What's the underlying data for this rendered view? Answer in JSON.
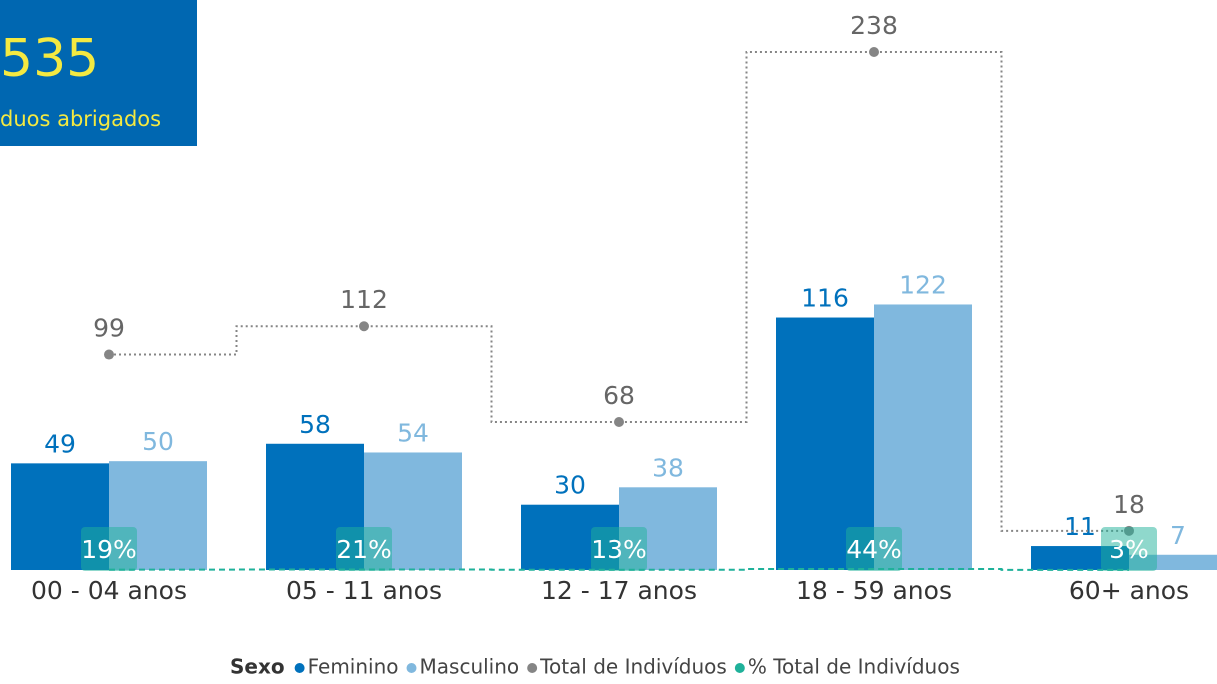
{
  "card": {
    "value": "535",
    "label": "duos abrigados"
  },
  "chart_data": {
    "type": "bar",
    "categories": [
      "00 - 04 anos",
      "05 - 11 anos",
      "12 - 17 anos",
      "18 - 59 anos",
      "60+ anos"
    ],
    "series": [
      {
        "name": "Feminino",
        "color": "#0071bc",
        "values": [
          49,
          58,
          30,
          116,
          11
        ]
      },
      {
        "name": "Masculino",
        "color": "#80b8de",
        "values": [
          50,
          54,
          38,
          122,
          7
        ]
      },
      {
        "name": "Total de Indivíduos",
        "color": "#858585",
        "type": "line",
        "values": [
          99,
          112,
          68,
          238,
          18
        ]
      },
      {
        "name": "% Total de Indivíduos",
        "color": "#1fb19a",
        "type": "line",
        "values": [
          0.19,
          0.21,
          0.13,
          0.44,
          0.03
        ],
        "value_labels": [
          "19%",
          "21%",
          "13%",
          "44%",
          "3%"
        ]
      }
    ],
    "ylim": [
      0,
      238
    ],
    "legend_title": "Sexo"
  }
}
